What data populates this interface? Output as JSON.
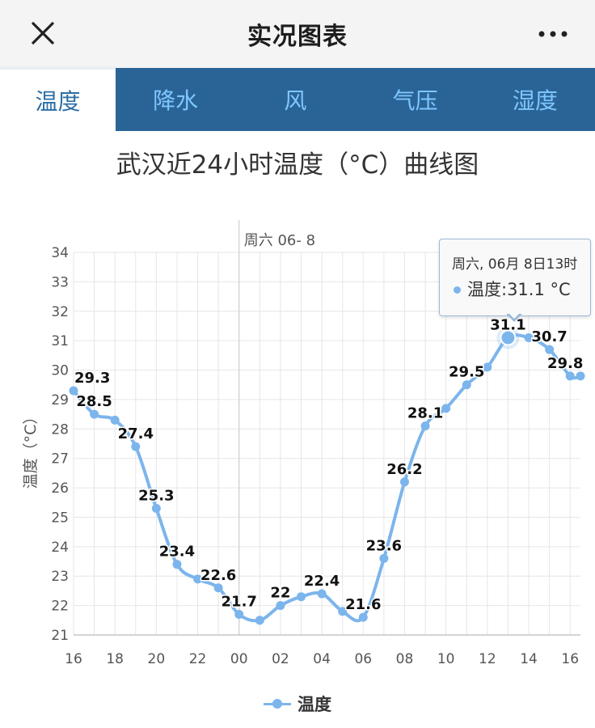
{
  "header": {
    "title": "实况图表",
    "close_icon": "close-icon",
    "more_icon": "more-icon"
  },
  "tabs": [
    {
      "label": "温度",
      "active": true
    },
    {
      "label": "降水",
      "active": false
    },
    {
      "label": "风",
      "active": false
    },
    {
      "label": "气压",
      "active": false
    },
    {
      "label": "湿度",
      "active": false
    }
  ],
  "tooltip": {
    "header": "周六, 06月 8日13时",
    "value_text": "温度:31.1 °C"
  },
  "colors": {
    "series": "#7cb5ec",
    "tab_bar": "#2a6496",
    "tab_text": "#7fc6ff"
  },
  "chart_data": {
    "type": "line",
    "title": "武汉近24小时温度（°C）曲线图",
    "ylabel": "温度（°C）",
    "xlabel": "",
    "ylim": [
      21,
      34
    ],
    "yticks": [
      21,
      22,
      23,
      24,
      25,
      26,
      27,
      28,
      29,
      30,
      31,
      32,
      33,
      34
    ],
    "xlim": [
      16,
      40.5
    ],
    "x_ticks": [
      16,
      18,
      20,
      22,
      24,
      26,
      28,
      30,
      32,
      34,
      36,
      38,
      40
    ],
    "x_tick_labels": [
      "16",
      "18",
      "20",
      "22",
      "00",
      "02",
      "04",
      "06",
      "08",
      "10",
      "12",
      "14",
      "16"
    ],
    "date_divider": {
      "x": 24,
      "label": "周六 06- 8"
    },
    "grid": true,
    "legend": "bottom-center",
    "series": [
      {
        "name": "温度",
        "x": [
          16,
          17,
          18,
          19,
          20,
          21,
          22,
          23,
          24,
          25,
          26,
          27,
          28,
          29,
          30,
          31,
          32,
          33,
          34,
          35,
          36,
          37,
          38,
          39,
          40,
          40.5
        ],
        "values": [
          29.3,
          28.5,
          28.3,
          27.4,
          25.3,
          23.4,
          22.9,
          22.6,
          21.7,
          21.5,
          22.0,
          22.3,
          22.4,
          21.8,
          21.6,
          23.6,
          26.2,
          28.1,
          28.7,
          29.5,
          30.1,
          31.1,
          31.1,
          30.7,
          29.8,
          29.8
        ],
        "labels": [
          {
            "x": 16,
            "text": "29.3"
          },
          {
            "x": 17,
            "text": "28.5"
          },
          {
            "x": 19,
            "text": "27.4"
          },
          {
            "x": 20,
            "text": "25.3"
          },
          {
            "x": 21,
            "text": "23.4"
          },
          {
            "x": 23,
            "text": "22.6"
          },
          {
            "x": 24,
            "text": "21.7"
          },
          {
            "x": 26,
            "text": "22"
          },
          {
            "x": 28,
            "text": "22.4"
          },
          {
            "x": 30,
            "text": "21.6"
          },
          {
            "x": 31,
            "text": "23.6"
          },
          {
            "x": 32,
            "text": "26.2"
          },
          {
            "x": 33,
            "text": "28.1"
          },
          {
            "x": 35,
            "text": "29.5"
          },
          {
            "x": 37,
            "text": "31.1"
          },
          {
            "x": 39,
            "text": "30.7"
          },
          {
            "x": 40,
            "text": "29.8"
          }
        ]
      }
    ],
    "highlight_x": 37
  }
}
